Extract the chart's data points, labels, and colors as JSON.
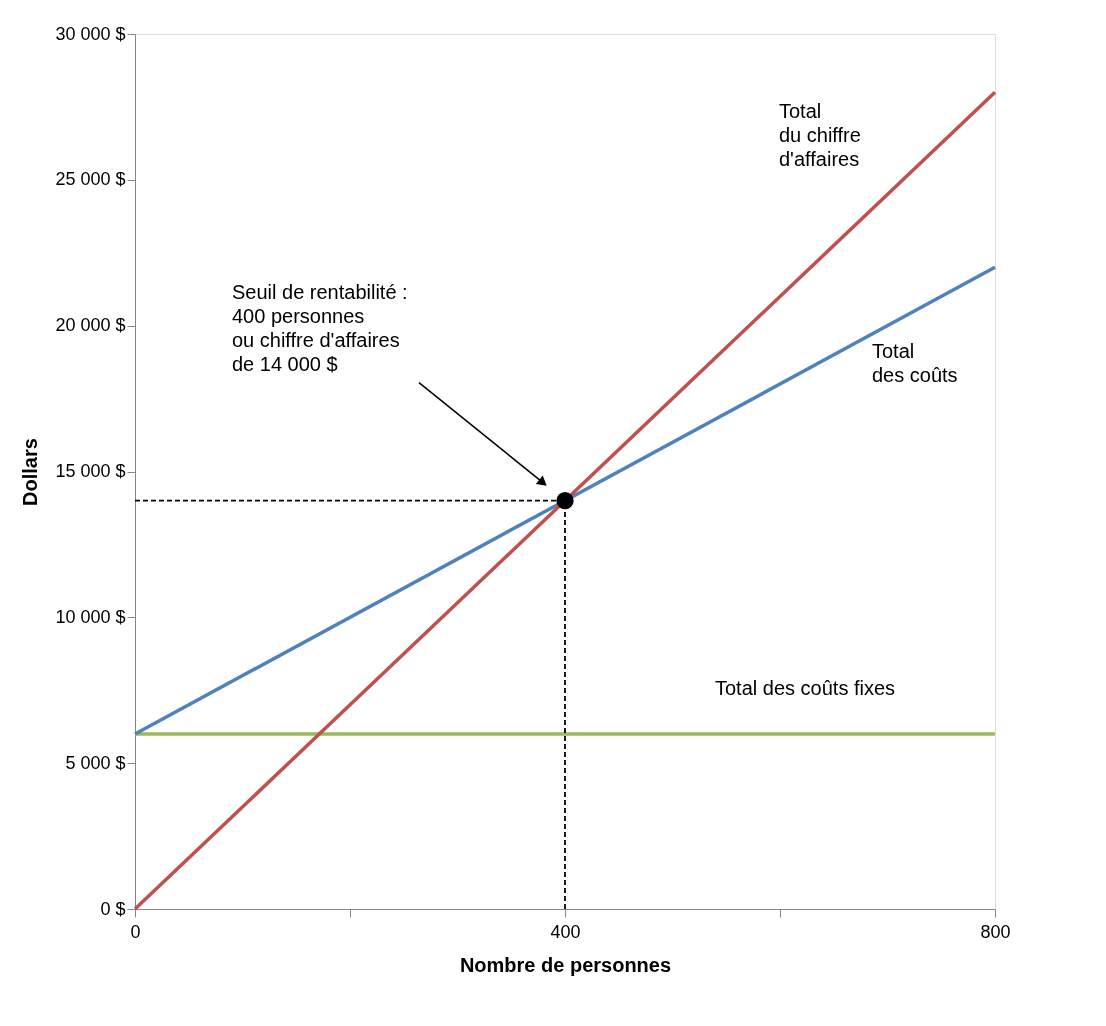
{
  "chart_data": {
    "type": "line",
    "xlabel": "Nombre de  personnes",
    "ylabel": "Dollars",
    "xlim": [
      0,
      800
    ],
    "xticks": [
      0,
      {
        "value": 200,
        "label": null
      },
      400,
      {
        "value": 600,
        "label": null
      },
      800
    ],
    "ylim": [
      0,
      30000
    ],
    "yticks": [
      {
        "value": 0,
        "label": "0 $"
      },
      {
        "value": 5000,
        "label": "5 000 $"
      },
      {
        "value": 10000,
        "label": "10 000 $"
      },
      {
        "value": 15000,
        "label": "15 000 $"
      },
      {
        "value": 20000,
        "label": "20 000 $"
      },
      {
        "value": 25000,
        "label": "25 000 $"
      },
      {
        "value": 30000,
        "label": "30 000 $"
      }
    ],
    "grid": false,
    "series": [
      {
        "name": "Total des coûts fixes",
        "color": "#9bbb59",
        "x": [
          0,
          800
        ],
        "values": [
          6000,
          6000
        ],
        "line_style": "solid"
      },
      {
        "name": "Total\ndes coûts",
        "color": "#4f81bd",
        "x": [
          0,
          800
        ],
        "values": [
          6000,
          22000
        ],
        "line_style": "solid"
      },
      {
        "name": "Total\ndu chiffre\nd'affaires",
        "color": "#c0504d",
        "x": [
          0,
          800
        ],
        "values": [
          0,
          28000
        ],
        "line_style": "solid"
      },
      {
        "color": "#000000",
        "x": [
          0,
          400
        ],
        "values": [
          14000,
          14000
        ],
        "line_style": "dashed"
      },
      {
        "color": "#000000",
        "x": [
          400,
          400
        ],
        "values": [
          0,
          14000
        ],
        "line_style": "dashed"
      },
      {
        "type": "scatter",
        "color": "#000000",
        "x": [
          400
        ],
        "values": [
          14000
        ],
        "marker": "circle"
      }
    ],
    "annotations": [
      "Seuil de rentabilité :\n400 personnes\nou chiffre d'affaires\nde 14 000 $"
    ]
  }
}
